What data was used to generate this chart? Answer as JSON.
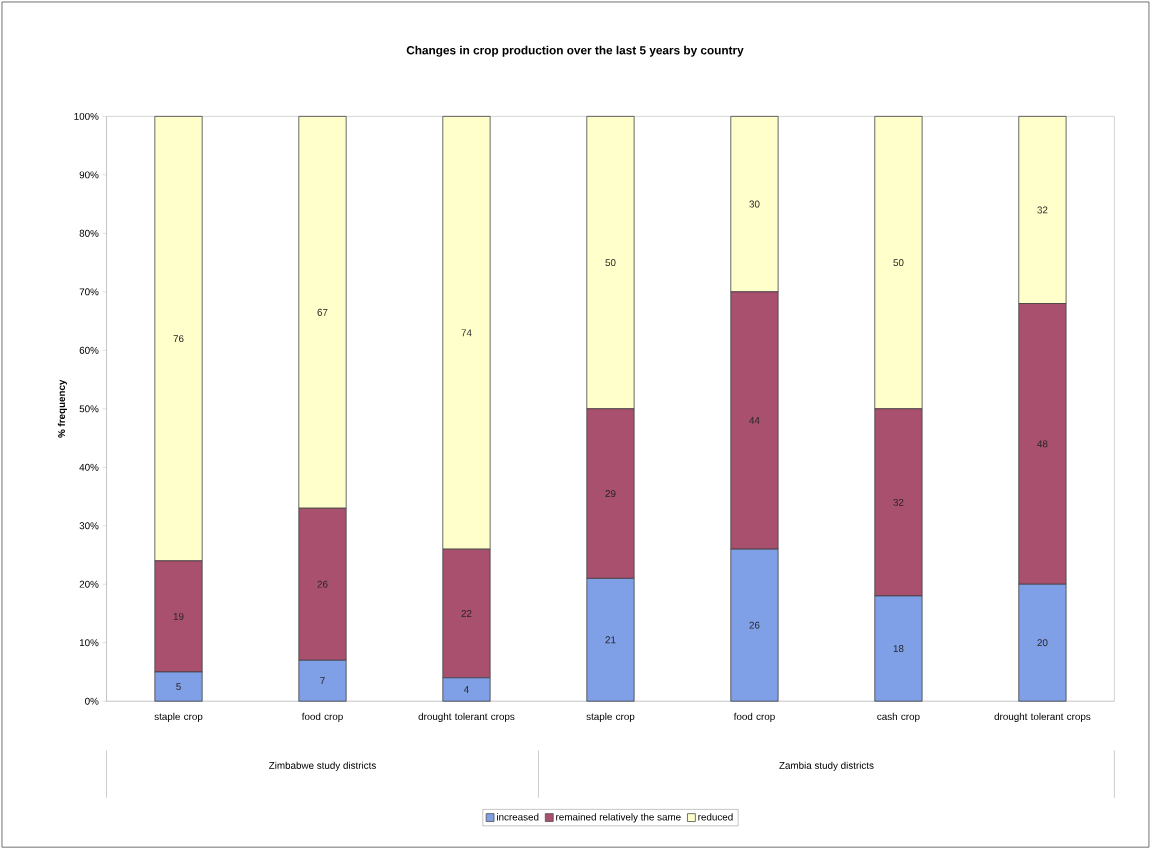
{
  "chart_data": {
    "type": "bar",
    "stacked": true,
    "title": "Changes in crop production over the last 5 years by country",
    "ylabel": "% frequency",
    "categories": [
      "staple crop",
      "food crop",
      "drought tolerant crops",
      "staple crop",
      "food crop",
      "cash crop",
      "drought tolerant crops"
    ],
    "series": [
      {
        "name": "increased",
        "color": "#7f9fe6",
        "values": [
          5,
          7,
          4,
          21,
          26,
          18,
          20
        ]
      },
      {
        "name": "remained relatively the same",
        "color": "#a8506e",
        "values": [
          19,
          26,
          22,
          29,
          44,
          32,
          48
        ]
      },
      {
        "name": "reduced",
        "color": "#ffffcc",
        "values": [
          76,
          67,
          74,
          50,
          30,
          50,
          32
        ]
      }
    ],
    "ylim": [
      0,
      100
    ],
    "yticks": [
      {
        "value": 0,
        "label": "0%"
      },
      {
        "value": 10,
        "label": "10%"
      },
      {
        "value": 20,
        "label": "20%"
      },
      {
        "value": 30,
        "label": "30%"
      },
      {
        "value": 40,
        "label": "40%"
      },
      {
        "value": 50,
        "label": "50%"
      },
      {
        "value": 60,
        "label": "60%"
      },
      {
        "value": 70,
        "label": "70%"
      },
      {
        "value": 80,
        "label": "80%"
      },
      {
        "value": 90,
        "label": "90%"
      },
      {
        "value": 100,
        "label": "100%"
      }
    ],
    "data_labels": true,
    "legend": "bottom",
    "annotations": [
      "Zimbabwe study districts",
      "Zambia study districts"
    ]
  }
}
